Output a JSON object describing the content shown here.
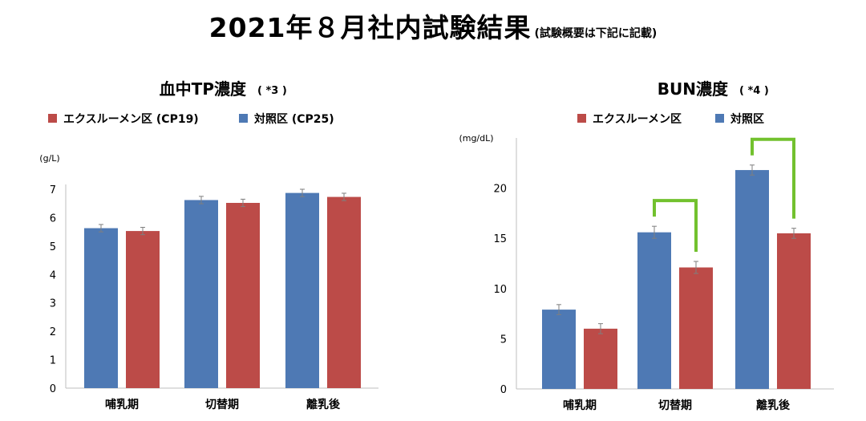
{
  "page": {
    "title": "2021年８月社内試験結果",
    "title_note": "(試験概要は下記に記載)"
  },
  "colors": {
    "control": "#4E79B4",
    "treatment": "#BC4B48",
    "bracket": "#72C12E",
    "axis": "#BFBFBF",
    "error_bar": "#7F7F7F"
  },
  "chart_data": [
    {
      "type": "bar",
      "title": "血中TP濃度",
      "title_note": "( *3 )",
      "ylabel": "(g/L)",
      "ylim": [
        0,
        7
      ],
      "yticks": [
        "0",
        "1",
        "2",
        "3",
        "4",
        "5",
        "6",
        "7"
      ],
      "categories": [
        "哺乳期",
        "切替期",
        "離乳後"
      ],
      "legend": [
        "エクスルーメン区 (CP19)",
        "対照区 (CP25)"
      ],
      "legend_placement": "top",
      "grid": false,
      "series": [
        {
          "name": "対照区 (CP25)",
          "color": "#4E79B4",
          "values": [
            5.63,
            6.62,
            6.87
          ],
          "errors": [
            0.13,
            0.13,
            0.13
          ]
        },
        {
          "name": "エクスルーメン区 (CP19)",
          "color": "#BC4B48",
          "values": [
            5.53,
            6.52,
            6.73
          ],
          "errors": [
            0.13,
            0.13,
            0.13
          ]
        }
      ],
      "brackets": []
    },
    {
      "type": "bar",
      "title": "BUN濃度",
      "title_note": "( *4 )",
      "ylabel": "(mg/dL)",
      "ylim": [
        0,
        25
      ],
      "yticks": [
        "0",
        "5",
        "10",
        "15",
        "20"
      ],
      "categories": [
        "哺乳期",
        "切替期",
        "離乳後"
      ],
      "legend": [
        "エクスルーメン区",
        "対照区"
      ],
      "legend_placement": "top",
      "grid": false,
      "series": [
        {
          "name": "対照区",
          "color": "#4E79B4",
          "values": [
            7.9,
            15.6,
            21.8
          ],
          "errors": [
            0.5,
            0.6,
            0.5
          ]
        },
        {
          "name": "エクスルーメン区",
          "color": "#BC4B48",
          "values": [
            6.0,
            12.1,
            15.5
          ],
          "errors": [
            0.5,
            0.6,
            0.5
          ]
        }
      ],
      "brackets": [
        1,
        2
      ]
    }
  ]
}
